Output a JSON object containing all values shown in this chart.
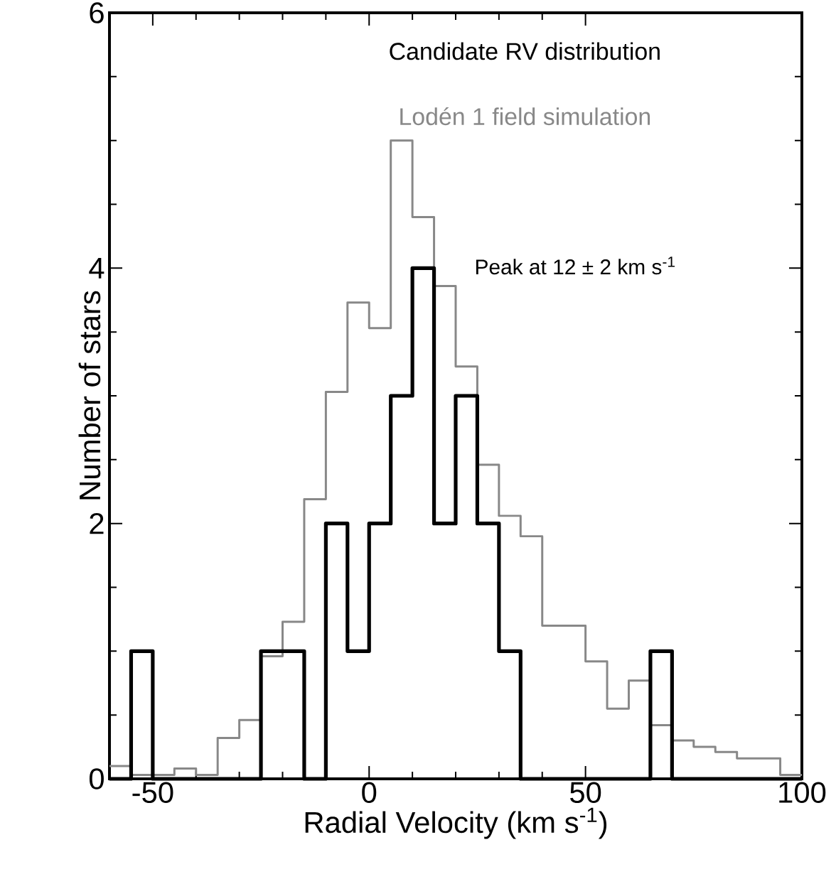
{
  "chart_data": {
    "type": "histogram",
    "xlabel": "Radial Velocity (km s$^{-1}$)",
    "ylabel": "Number of stars",
    "annotations": [
      "Peak at 12 ± 2 km s$^{-1}$"
    ],
    "bins": [
      -60,
      -55,
      -50,
      -45,
      -40,
      -35,
      -30,
      -25,
      -20,
      -15,
      -10,
      -5,
      0,
      5,
      10,
      15,
      20,
      25,
      30,
      35,
      40,
      45,
      50,
      55,
      60,
      65,
      70,
      75,
      80,
      85,
      90,
      95,
      100
    ],
    "series": [
      {
        "name": "Candidate RV distribution",
        "color": "#000000",
        "values": [
          0,
          1,
          0,
          0,
          0,
          0,
          0,
          1,
          1,
          0,
          2,
          1,
          2,
          3,
          4,
          2,
          3,
          2,
          1,
          0,
          0,
          0,
          0,
          0,
          0,
          1,
          0,
          0,
          0,
          0,
          0,
          0
        ]
      },
      {
        "name": "Lodén 1 field simulation",
        "color": "#888888",
        "values": [
          0.1,
          0.03,
          0.03,
          0.08,
          0.03,
          0.32,
          0.46,
          0.96,
          1.23,
          2.19,
          3.03,
          3.73,
          3.53,
          5.0,
          4.4,
          3.86,
          3.23,
          2.46,
          2.06,
          1.9,
          1.2,
          1.2,
          0.92,
          0.55,
          0.77,
          0.42,
          0.3,
          0.25,
          0.21,
          0.16,
          0.16,
          0.03
        ]
      }
    ],
    "xlim": [
      -60,
      100
    ],
    "ylim": [
      0,
      6
    ],
    "xticks": [
      {
        "value": -50,
        "label": "-50"
      },
      {
        "value": 0,
        "label": "0"
      },
      {
        "value": 50,
        "label": "50"
      },
      {
        "value": 100,
        "label": "100"
      }
    ],
    "yticks": [
      {
        "value": 0,
        "label": "0"
      },
      {
        "value": 2,
        "label": "2"
      },
      {
        "value": 4,
        "label": "4"
      },
      {
        "value": 6,
        "label": "6"
      }
    ]
  }
}
